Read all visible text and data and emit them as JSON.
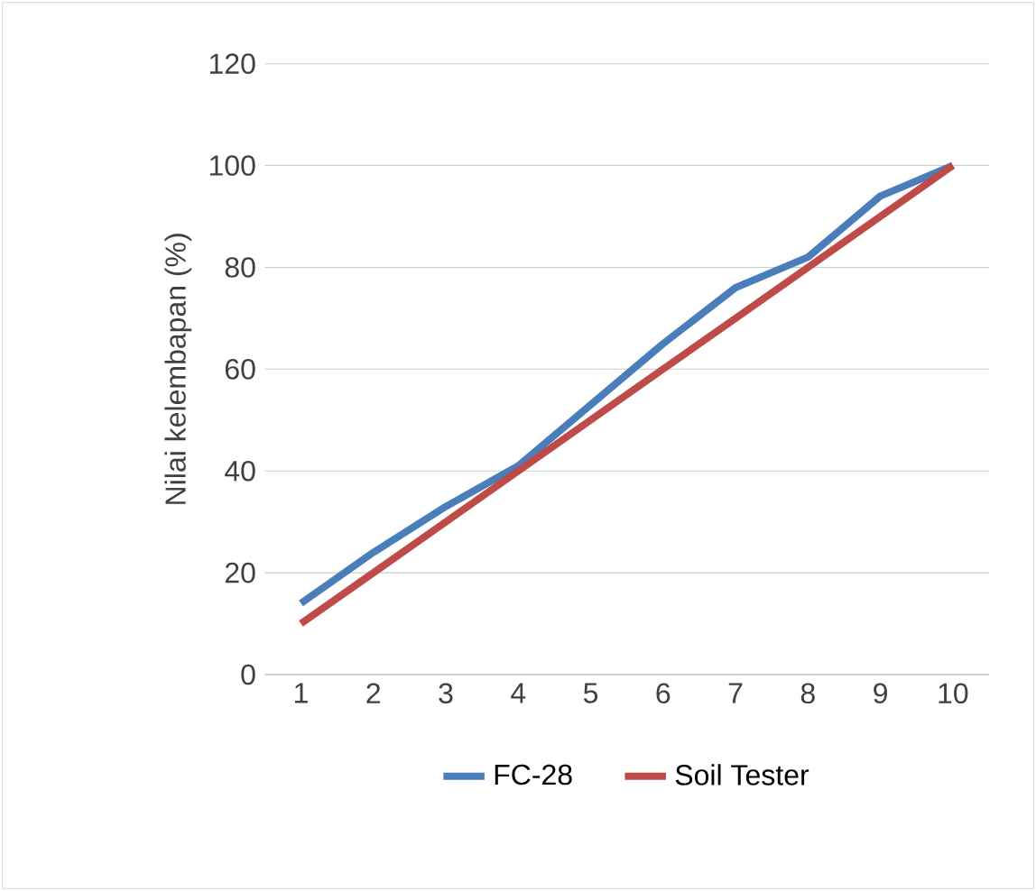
{
  "chart_data": {
    "type": "line",
    "ylabel": "Nilai kelembapan (%)",
    "categories": [
      "1",
      "2",
      "3",
      "4",
      "5",
      "6",
      "7",
      "8",
      "9",
      "10"
    ],
    "series": [
      {
        "name": "FC-28",
        "color": "#4a7ebb",
        "values": [
          14,
          24,
          33,
          41,
          53,
          65,
          76,
          82,
          94,
          100
        ]
      },
      {
        "name": "Soil Tester",
        "color": "#be4b48",
        "values": [
          10,
          20,
          30,
          40,
          50,
          60,
          70,
          80,
          90,
          100
        ]
      }
    ],
    "ylim": [
      0,
      120
    ],
    "yticks": [
      0,
      20,
      40,
      60,
      80,
      100,
      120
    ],
    "grid": "y",
    "legend": "bottom",
    "marker": "none",
    "line_style": "solid"
  }
}
